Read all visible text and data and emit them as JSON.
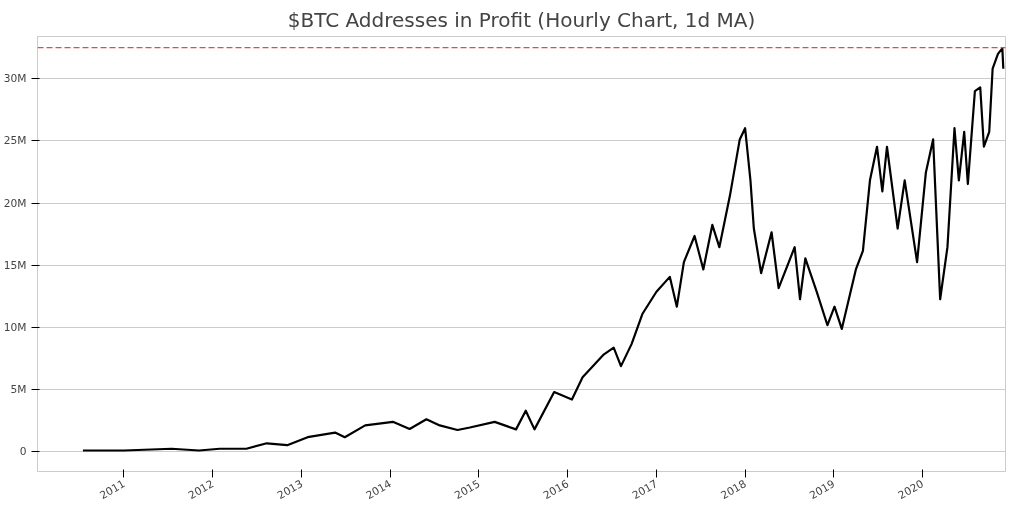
{
  "chart_data": {
    "type": "line",
    "title": "$BTC Addresses in Profit (Hourly Chart, 1d MA)",
    "x": [
      "2010-07-16",
      "2011-01-01",
      "2011-07-16",
      "2011-11-06",
      "2012-01-30",
      "2012-05-19",
      "2012-08-11",
      "2012-11-03",
      "2013-01-26",
      "2013-05-19",
      "2013-06-28",
      "2013-09-20",
      "2014-01-12",
      "2014-03-22",
      "2014-05-30",
      "2014-07-24",
      "2014-10-05",
      "2014-11-25",
      "2015-03-07",
      "2015-06-03",
      "2015-07-13",
      "2015-08-18",
      "2015-11-07",
      "2016-01-19",
      "2016-03-03",
      "2016-05-27",
      "2016-07-09",
      "2016-08-08",
      "2016-09-21",
      "2016-11-04",
      "2017-01-01",
      "2017-02-25",
      "2017-03-26",
      "2017-04-24",
      "2017-06-07",
      "2017-07-13",
      "2017-08-19",
      "2017-09-17",
      "2017-10-31",
      "2017-12-10",
      "2018-01-01",
      "2018-01-23",
      "2018-02-06",
      "2018-03-08",
      "2018-04-20",
      "2018-05-19",
      "2018-07-24",
      "2018-08-15",
      "2018-09-06",
      "2018-10-23",
      "2018-12-06",
      "2019-01-04",
      "2019-02-03",
      "2019-04-02",
      "2019-05-01",
      "2019-05-30",
      "2019-06-28",
      "2019-07-20",
      "2019-08-08",
      "2019-09-21",
      "2019-10-20",
      "2019-12-10",
      "2020-01-15",
      "2020-02-14",
      "2020-03-14",
      "2020-04-13",
      "2020-05-12",
      "2020-05-30",
      "2020-06-21",
      "2020-07-06",
      "2020-08-04",
      "2020-08-26",
      "2020-09-10",
      "2020-10-02",
      "2020-10-16",
      "2020-11-07",
      "2020-11-25",
      "2020-11-29"
    ],
    "series": [
      {
        "color": "#000000",
        "values": [
          90000,
          90000,
          230000,
          90000,
          230000,
          230000,
          670000,
          520000,
          1160000,
          1530000,
          1160000,
          2110000,
          2400000,
          1820000,
          2600000,
          2110000,
          1740000,
          1940000,
          2390000,
          1790000,
          3290000,
          1790000,
          4790000,
          4190000,
          5980000,
          7780000,
          8370000,
          6880000,
          8670000,
          11070000,
          12860000,
          14060000,
          11660000,
          15250000,
          17350000,
          14660000,
          18240000,
          16450000,
          20640000,
          25120000,
          26020000,
          21830000,
          17950000,
          14360000,
          17650000,
          13160000,
          16450000,
          12260000,
          15550000,
          12860000,
          10170000,
          11660000,
          9870000,
          14660000,
          16150000,
          21830000,
          24530000,
          20940000,
          24530000,
          17950000,
          21830000,
          15250000,
          22430000,
          25120000,
          12260000,
          16450000,
          26020000,
          21830000,
          25720000,
          21530000,
          29010000,
          29310000,
          24530000,
          25720000,
          30810000,
          32000000,
          32450000,
          30810000
        ]
      }
    ],
    "xlim": [
      "2010-01-10",
      "2020-12-08"
    ],
    "xticks": [
      {
        "value": "2011-01-01",
        "label": "2011"
      },
      {
        "value": "2012-01-01",
        "label": "2012"
      },
      {
        "value": "2013-01-01",
        "label": "2013"
      },
      {
        "value": "2014-01-01",
        "label": "2014"
      },
      {
        "value": "2015-01-01",
        "label": "2015"
      },
      {
        "value": "2016-01-01",
        "label": "2016"
      },
      {
        "value": "2017-01-01",
        "label": "2017"
      },
      {
        "value": "2018-01-01",
        "label": "2018"
      },
      {
        "value": "2019-01-01",
        "label": "2019"
      },
      {
        "value": "2020-01-01",
        "label": "2020"
      }
    ],
    "ylim": [
      -1600000,
      33400000
    ],
    "yticks": [
      {
        "value": 0,
        "label": "0"
      },
      {
        "value": 5000000,
        "label": "5M"
      },
      {
        "value": 10000000,
        "label": "10M"
      },
      {
        "value": 15000000,
        "label": "15M"
      },
      {
        "value": 20000000,
        "label": "20M"
      },
      {
        "value": 25000000,
        "label": "25M"
      },
      {
        "value": 30000000,
        "label": "30M"
      }
    ],
    "grid": "y",
    "ref_lines": [
      {
        "axis": "y",
        "value": 32500000,
        "color": "#e8484a",
        "line_style": "dashed"
      }
    ],
    "line_style": "solid"
  }
}
